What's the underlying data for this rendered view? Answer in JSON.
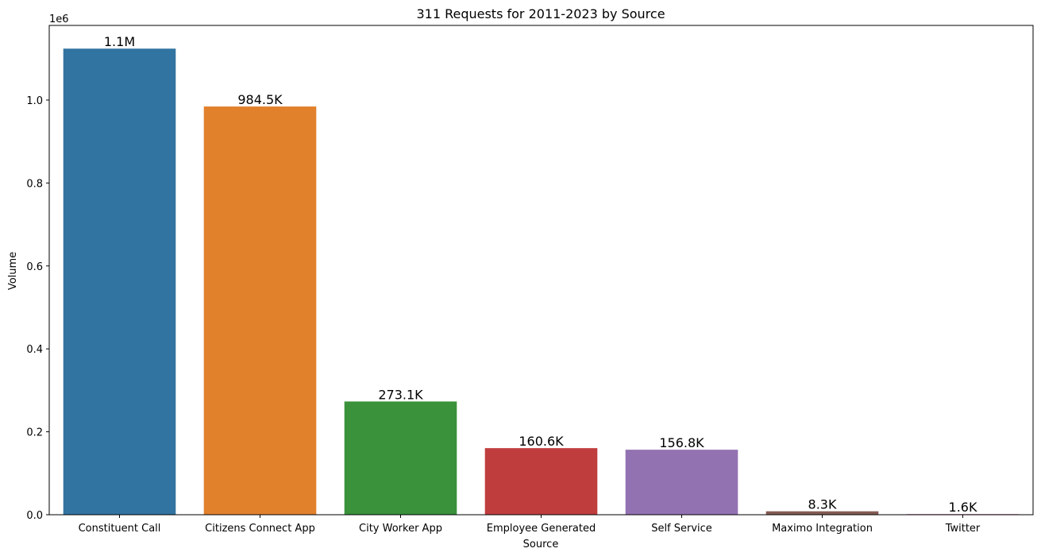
{
  "chart_data": {
    "type": "bar",
    "title": "311 Requests for 2011-2023 by Source",
    "xlabel": "Source",
    "ylabel": "Volume",
    "y_offset_label": "1e6",
    "ylim": [
      0,
      1.18
    ],
    "yticks": [
      0.0,
      0.2,
      0.4,
      0.6,
      0.8,
      1.0
    ],
    "ytick_labels": [
      "0.0",
      "0.2",
      "0.4",
      "0.6",
      "0.8",
      "1.0"
    ],
    "grid": false,
    "categories": [
      "Constituent Call",
      "Citizens Connect App",
      "City Worker App",
      "Employee Generated",
      "Self Service",
      "Maximo Integration",
      "Twitter"
    ],
    "values": [
      1.124,
      0.9845,
      0.2731,
      0.1606,
      0.1568,
      0.0083,
      0.0016
    ],
    "data_labels": [
      "1.1M",
      "984.5K",
      "273.1K",
      "160.6K",
      "156.8K",
      "8.3K",
      "1.6K"
    ],
    "colors": [
      "#3274a1",
      "#e1812c",
      "#3a923a",
      "#c03d3e",
      "#9372b2",
      "#845b53",
      "#d684bd"
    ]
  }
}
